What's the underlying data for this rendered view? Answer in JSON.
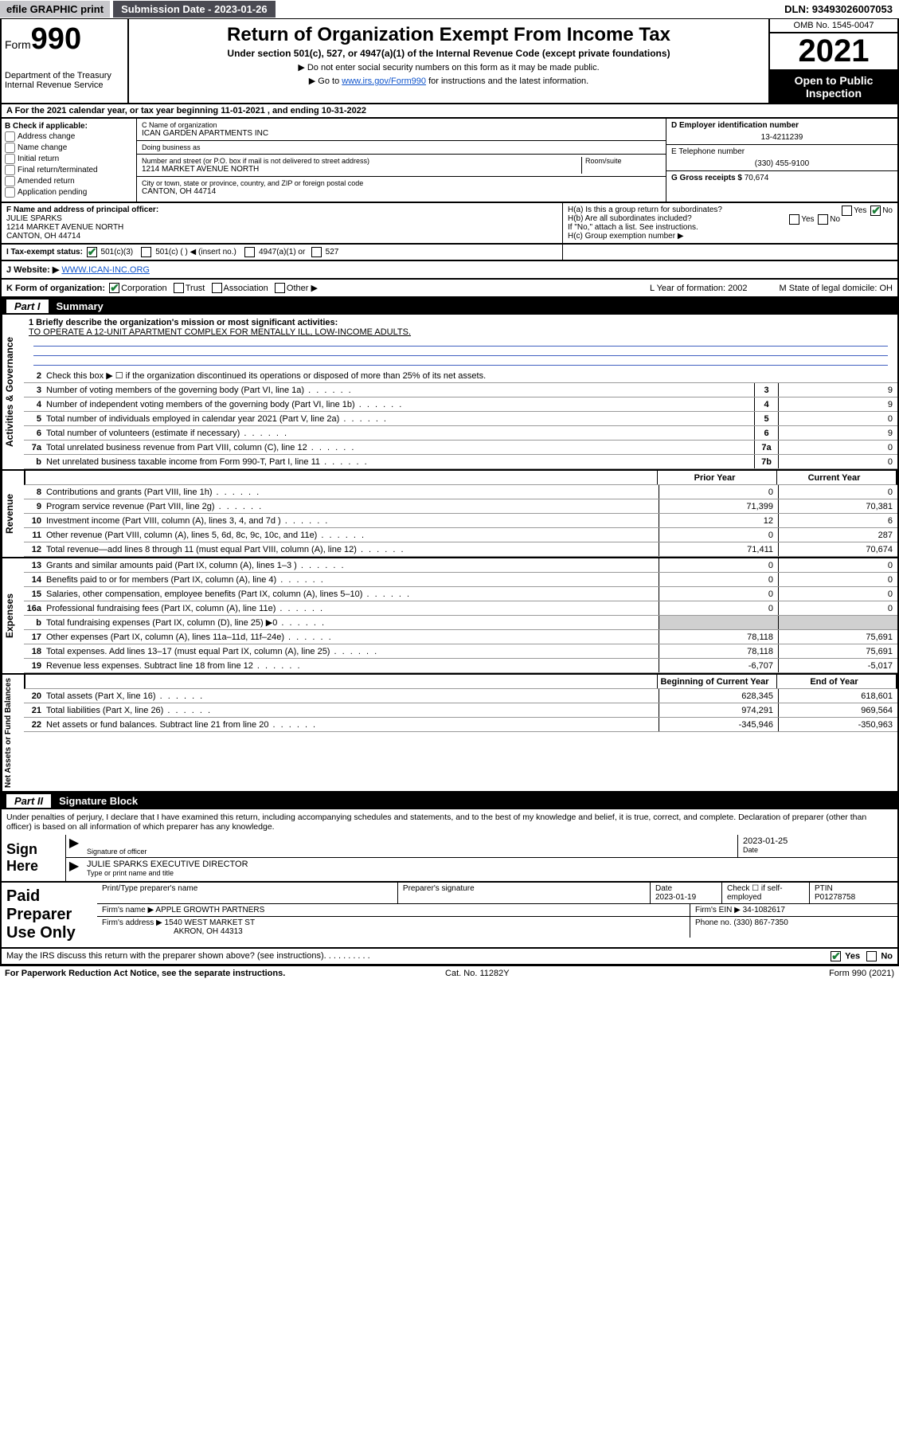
{
  "topbar": {
    "efile": "efile GRAPHIC print",
    "submission_label": "Submission Date - 2023-01-26",
    "dln": "DLN: 93493026007053"
  },
  "header": {
    "form_prefix": "Form",
    "form_number": "990",
    "dept": "Department of the Treasury\nInternal Revenue Service",
    "title": "Return of Organization Exempt From Income Tax",
    "subtitle": "Under section 501(c), 527, or 4947(a)(1) of the Internal Revenue Code (except private foundations)",
    "note1": "▶ Do not enter social security numbers on this form as it may be made public.",
    "note2_pre": "▶ Go to ",
    "note2_link": "www.irs.gov/Form990",
    "note2_post": " for instructions and the latest information.",
    "omb": "OMB No. 1545-0047",
    "year": "2021",
    "open": "Open to Public Inspection"
  },
  "rowA": "A For the 2021 calendar year, or tax year beginning 11-01-2021   , and ending 10-31-2022",
  "blockB": {
    "label": "B Check if applicable:",
    "items": [
      "Address change",
      "Name change",
      "Initial return",
      "Final return/terminated",
      "Amended return",
      "Application pending"
    ]
  },
  "blockC": {
    "name_label": "C Name of organization",
    "name": "ICAN GARDEN APARTMENTS INC",
    "dba_label": "Doing business as",
    "dba": "",
    "addr_label": "Number and street (or P.O. box if mail is not delivered to street address)",
    "room_label": "Room/suite",
    "addr": "1214 MARKET AVENUE NORTH",
    "city_label": "City or town, state or province, country, and ZIP or foreign postal code",
    "city": "CANTON, OH  44714"
  },
  "blockD": {
    "label": "D Employer identification number",
    "value": "13-4211239"
  },
  "blockE": {
    "label": "E Telephone number",
    "value": "(330) 455-9100"
  },
  "blockG": {
    "label": "G Gross receipts $",
    "value": "70,674"
  },
  "blockF": {
    "label": "F  Name and address of principal officer:",
    "name": "JULIE SPARKS",
    "addr1": "1214 MARKET AVENUE NORTH",
    "addr2": "CANTON, OH  44714"
  },
  "blockH": {
    "a": "H(a)  Is this a group return for subordinates?",
    "a_yes": "Yes",
    "a_no": "No",
    "b": "H(b)  Are all subordinates included?",
    "b_yes": "Yes",
    "b_no": "No",
    "b_note": "If \"No,\" attach a list. See instructions.",
    "c": "H(c)  Group exemption number ▶"
  },
  "rowI": {
    "label": "I    Tax-exempt status:",
    "opt1": "501(c)(3)",
    "opt2": "501(c) (  ) ◀ (insert no.)",
    "opt3": "4947(a)(1) or",
    "opt4": "527"
  },
  "rowJ": {
    "label": "J    Website: ▶",
    "value": "WWW.ICAN-INC.ORG"
  },
  "rowK": {
    "label": "K Form of organization:",
    "opts": [
      "Corporation",
      "Trust",
      "Association",
      "Other ▶"
    ],
    "L": "L Year of formation: 2002",
    "M": "M State of legal domicile: OH"
  },
  "part1": {
    "num": "Part I",
    "title": "Summary"
  },
  "summary": {
    "sec1_label": "Activities & Governance",
    "sec2_label": "Revenue",
    "sec3_label": "Expenses",
    "sec4_label": "Net Assets or Fund Balances",
    "line1_label": "1  Briefly describe the organization's mission or most significant activities:",
    "line1_text": "TO OPERATE A 12-UNIT APARTMENT COMPLEX FOR MENTALLY ILL, LOW-INCOME ADULTS.",
    "line2": "Check this box ▶ ☐  if the organization discontinued its operations or disposed of more than 25% of its net assets.",
    "rows_gov": [
      {
        "n": "3",
        "t": "Number of voting members of the governing body (Part VI, line 1a)",
        "box": "3",
        "v": "9"
      },
      {
        "n": "4",
        "t": "Number of independent voting members of the governing body (Part VI, line 1b)",
        "box": "4",
        "v": "9"
      },
      {
        "n": "5",
        "t": "Total number of individuals employed in calendar year 2021 (Part V, line 2a)",
        "box": "5",
        "v": "0"
      },
      {
        "n": "6",
        "t": "Total number of volunteers (estimate if necessary)",
        "box": "6",
        "v": "9"
      },
      {
        "n": "7a",
        "t": "Total unrelated business revenue from Part VIII, column (C), line 12",
        "box": "7a",
        "v": "0"
      },
      {
        "n": "b",
        "t": "Net unrelated business taxable income from Form 990-T, Part I, line 11",
        "box": "7b",
        "v": "0"
      }
    ],
    "col_hdr": {
      "prior": "Prior Year",
      "current": "Current Year"
    },
    "rows_rev": [
      {
        "n": "8",
        "t": "Contributions and grants (Part VIII, line 1h)",
        "p": "0",
        "c": "0"
      },
      {
        "n": "9",
        "t": "Program service revenue (Part VIII, line 2g)",
        "p": "71,399",
        "c": "70,381"
      },
      {
        "n": "10",
        "t": "Investment income (Part VIII, column (A), lines 3, 4, and 7d )",
        "p": "12",
        "c": "6"
      },
      {
        "n": "11",
        "t": "Other revenue (Part VIII, column (A), lines 5, 6d, 8c, 9c, 10c, and 11e)",
        "p": "0",
        "c": "287"
      },
      {
        "n": "12",
        "t": "Total revenue—add lines 8 through 11 (must equal Part VIII, column (A), line 12)",
        "p": "71,411",
        "c": "70,674"
      }
    ],
    "rows_exp": [
      {
        "n": "13",
        "t": "Grants and similar amounts paid (Part IX, column (A), lines 1–3 )",
        "p": "0",
        "c": "0"
      },
      {
        "n": "14",
        "t": "Benefits paid to or for members (Part IX, column (A), line 4)",
        "p": "0",
        "c": "0"
      },
      {
        "n": "15",
        "t": "Salaries, other compensation, employee benefits (Part IX, column (A), lines 5–10)",
        "p": "0",
        "c": "0"
      },
      {
        "n": "16a",
        "t": "Professional fundraising fees (Part IX, column (A), line 11e)",
        "p": "0",
        "c": "0"
      },
      {
        "n": "b",
        "t": "Total fundraising expenses (Part IX, column (D), line 25) ▶0",
        "p": "",
        "c": "",
        "grey": true
      },
      {
        "n": "17",
        "t": "Other expenses (Part IX, column (A), lines 11a–11d, 11f–24e)",
        "p": "78,118",
        "c": "75,691"
      },
      {
        "n": "18",
        "t": "Total expenses. Add lines 13–17 (must equal Part IX, column (A), line 25)",
        "p": "78,118",
        "c": "75,691"
      },
      {
        "n": "19",
        "t": "Revenue less expenses. Subtract line 18 from line 12",
        "p": "-6,707",
        "c": "-5,017"
      }
    ],
    "net_hdr": {
      "begin": "Beginning of Current Year",
      "end": "End of Year"
    },
    "rows_net": [
      {
        "n": "20",
        "t": "Total assets (Part X, line 16)",
        "p": "628,345",
        "c": "618,601"
      },
      {
        "n": "21",
        "t": "Total liabilities (Part X, line 26)",
        "p": "974,291",
        "c": "969,564"
      },
      {
        "n": "22",
        "t": "Net assets or fund balances. Subtract line 21 from line 20",
        "p": "-345,946",
        "c": "-350,963"
      }
    ]
  },
  "part2": {
    "num": "Part II",
    "title": "Signature Block"
  },
  "sig": {
    "decl": "Under penalties of perjury, I declare that I have examined this return, including accompanying schedules and statements, and to the best of my knowledge and belief, it is true, correct, and complete. Declaration of preparer (other than officer) is based on all information of which preparer has any knowledge.",
    "sign_here": "Sign Here",
    "sig_officer": "Signature of officer",
    "date_label": "Date",
    "date": "2023-01-25",
    "name": "JULIE SPARKS  EXECUTIVE DIRECTOR",
    "name_label": "Type or print name and title"
  },
  "paid": {
    "label": "Paid Preparer Use Only",
    "h1": "Print/Type preparer's name",
    "h2": "Preparer's signature",
    "h3": "Date",
    "h4": "Check ☐ if self-employed",
    "h5": "PTIN",
    "date": "2023-01-19",
    "ptin": "P01278758",
    "firm_label": "Firm's name    ▶",
    "firm": "APPLE GROWTH PARTNERS",
    "ein_label": "Firm's EIN ▶",
    "ein": "34-1082617",
    "addr_label": "Firm's address ▶",
    "addr": "1540 WEST MARKET ST",
    "addr2": "AKRON, OH  44313",
    "phone_label": "Phone no.",
    "phone": "(330) 867-7350"
  },
  "footer": {
    "discuss": "May the IRS discuss this return with the preparer shown above? (see instructions)",
    "yes": "Yes",
    "no": "No",
    "pra": "For Paperwork Reduction Act Notice, see the separate instructions.",
    "cat": "Cat. No. 11282Y",
    "form": "Form 990 (2021)"
  }
}
